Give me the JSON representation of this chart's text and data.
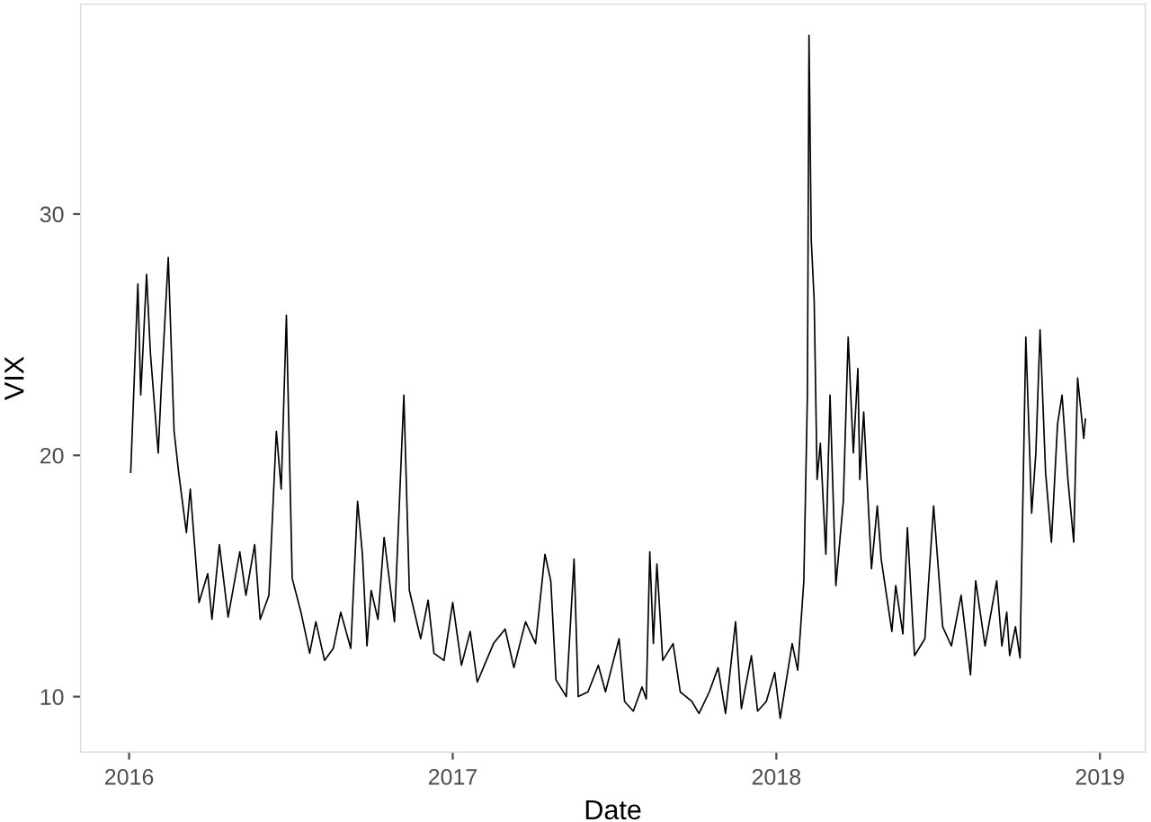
{
  "chart_data": {
    "type": "line",
    "xlabel": "Date",
    "ylabel": "VIX",
    "grid": false,
    "legend": false,
    "marker": "none",
    "line_style": "solid",
    "xlim": [
      2015.85,
      2019.14
    ],
    "xticks": [
      2016,
      2017,
      2018,
      2019
    ],
    "ylim": [
      7.7,
      38.7
    ],
    "yticks": [
      10,
      20,
      30
    ],
    "series": [
      {
        "color": "#000000",
        "x": [
          2016.005,
          2016.027,
          2016.036,
          2016.054,
          2016.066,
          2016.09,
          2016.099,
          2016.121,
          2016.139,
          2016.153,
          2016.177,
          2016.189,
          2016.216,
          2016.243,
          2016.256,
          2016.279,
          2016.306,
          2016.342,
          2016.361,
          2016.388,
          2016.405,
          2016.432,
          2016.455,
          2016.47,
          2016.486,
          2016.504,
          2016.531,
          2016.558,
          2016.577,
          2016.604,
          2016.631,
          2016.654,
          2016.685,
          2016.706,
          2016.721,
          2016.735,
          2016.748,
          2016.769,
          2016.788,
          2016.82,
          2016.849,
          2016.866,
          2016.901,
          2016.924,
          2016.942,
          2016.973,
          2017.0,
          2017.027,
          2017.054,
          2017.076,
          2017.126,
          2017.162,
          2017.189,
          2017.225,
          2017.256,
          2017.285,
          2017.303,
          2017.319,
          2017.351,
          2017.375,
          2017.388,
          2017.418,
          2017.45,
          2017.472,
          2017.514,
          2017.531,
          2017.558,
          2017.585,
          2017.598,
          2017.609,
          2017.62,
          2017.631,
          2017.649,
          2017.681,
          2017.703,
          2017.739,
          2017.761,
          2017.793,
          2017.82,
          2017.843,
          2017.874,
          2017.892,
          2017.923,
          2017.942,
          2017.969,
          2017.995,
          2018.012,
          2018.049,
          2018.066,
          2018.085,
          2018.096,
          2018.101,
          2018.108,
          2018.117,
          2018.126,
          2018.136,
          2018.153,
          2018.166,
          2018.184,
          2018.207,
          2018.222,
          2018.238,
          2018.252,
          2018.258,
          2018.27,
          2018.294,
          2018.312,
          2018.324,
          2018.357,
          2018.369,
          2018.391,
          2018.405,
          2018.427,
          2018.459,
          2018.486,
          2018.514,
          2018.541,
          2018.571,
          2018.6,
          2018.616,
          2018.645,
          2018.681,
          2018.697,
          2018.712,
          2018.721,
          2018.739,
          2018.753,
          2018.771,
          2018.789,
          2018.802,
          2018.815,
          2018.832,
          2018.85,
          2018.869,
          2018.883,
          2018.901,
          2018.919,
          2018.931,
          2018.95,
          2018.955
        ],
        "values": [
          19.3,
          27.1,
          22.5,
          27.5,
          24.2,
          20.1,
          22.7,
          28.2,
          21.0,
          19.3,
          16.8,
          18.6,
          13.9,
          15.1,
          13.2,
          16.3,
          13.3,
          16.0,
          14.2,
          16.3,
          13.2,
          14.2,
          21.0,
          18.6,
          25.8,
          14.9,
          13.5,
          11.8,
          13.1,
          11.5,
          12.0,
          13.5,
          12.0,
          18.1,
          15.9,
          12.1,
          14.4,
          13.2,
          16.6,
          13.1,
          22.5,
          14.4,
          12.4,
          14.0,
          11.8,
          11.5,
          13.9,
          11.3,
          12.7,
          10.6,
          12.2,
          12.8,
          11.2,
          13.1,
          12.2,
          15.9,
          14.8,
          10.7,
          10.0,
          15.7,
          10.0,
          10.2,
          11.3,
          10.2,
          12.4,
          9.8,
          9.4,
          10.4,
          9.9,
          16.0,
          12.2,
          15.5,
          11.5,
          12.2,
          10.2,
          9.8,
          9.3,
          10.2,
          11.2,
          9.3,
          13.1,
          9.5,
          11.7,
          9.4,
          9.8,
          11.0,
          9.1,
          12.2,
          11.1,
          14.8,
          22.5,
          37.4,
          28.9,
          26.4,
          19.0,
          20.5,
          15.9,
          22.5,
          14.6,
          18.1,
          24.9,
          20.1,
          23.6,
          19.0,
          21.8,
          15.3,
          17.9,
          15.7,
          12.7,
          14.6,
          12.6,
          17.0,
          11.7,
          12.4,
          17.9,
          12.9,
          12.1,
          14.2,
          10.9,
          14.8,
          12.1,
          14.8,
          12.1,
          13.5,
          11.7,
          12.9,
          11.6,
          24.9,
          17.6,
          20.1,
          25.2,
          19.3,
          16.4,
          21.3,
          22.5,
          19.0,
          16.4,
          23.2,
          20.7,
          21.5
        ]
      }
    ]
  }
}
